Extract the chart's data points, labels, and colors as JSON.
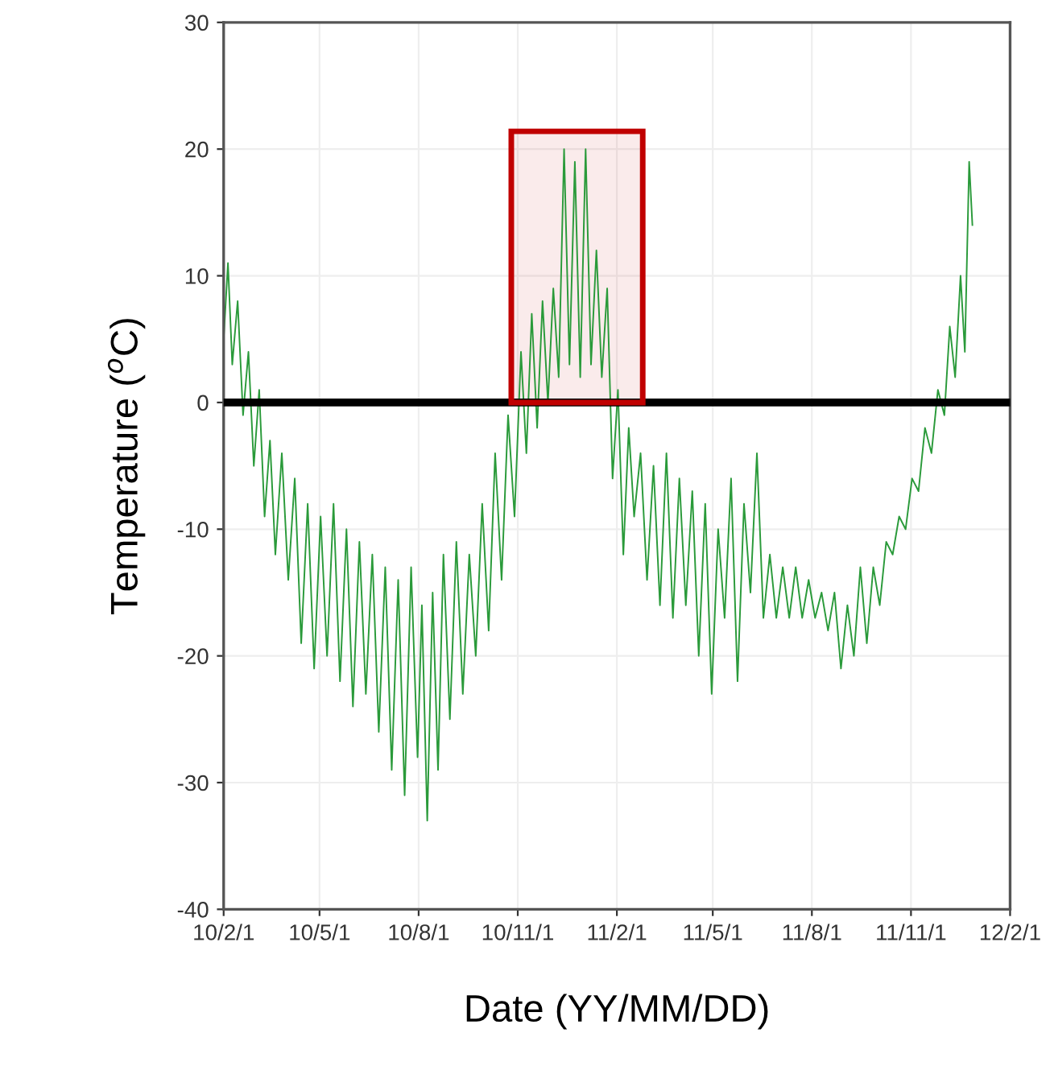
{
  "chart_data": {
    "type": "line",
    "xlabel": "Date (YY/MM/DD)",
    "ylabel": "Temperature ($^{o}$C)",
    "xlim": [
      "2010-02-01",
      "2012-02-01"
    ],
    "xticks": [
      {
        "value": "2010-02-01",
        "label": "10/2/1"
      },
      {
        "value": "2010-05-01",
        "label": "10/5/1"
      },
      {
        "value": "2010-08-01",
        "label": "10/8/1"
      },
      {
        "value": "2010-11-01",
        "label": "10/11/1"
      },
      {
        "value": "2011-02-01",
        "label": "11/2/1"
      },
      {
        "value": "2011-05-01",
        "label": "11/5/1"
      },
      {
        "value": "2011-08-01",
        "label": "11/8/1"
      },
      {
        "value": "2011-11-01",
        "label": "11/11/1"
      },
      {
        "value": "2012-02-01",
        "label": "12/2/1"
      }
    ],
    "ylim": [
      -40,
      30
    ],
    "yticks": [
      -40,
      -30,
      -20,
      -10,
      0,
      10,
      20,
      30
    ],
    "grid": true,
    "ref_lines": [
      {
        "axis": "y",
        "value": 0,
        "color": "#000000"
      }
    ],
    "bands": [
      {
        "axis": "x",
        "from": "2010-10-26",
        "to": "2011-02-25",
        "color": "#c00000"
      }
    ],
    "series": [
      {
        "color": "#2a9a3a",
        "x": [
          "2010-02-01",
          "2010-02-05",
          "2010-02-09",
          "2010-02-14",
          "2010-02-19",
          "2010-02-24",
          "2010-03-01",
          "2010-03-06",
          "2010-03-11",
          "2010-03-16",
          "2010-03-21",
          "2010-03-27",
          "2010-04-02",
          "2010-04-08",
          "2010-04-14",
          "2010-04-20",
          "2010-04-26",
          "2010-05-02",
          "2010-05-08",
          "2010-05-14",
          "2010-05-20",
          "2010-05-26",
          "2010-06-01",
          "2010-06-07",
          "2010-06-13",
          "2010-06-19",
          "2010-06-25",
          "2010-07-01",
          "2010-07-07",
          "2010-07-13",
          "2010-07-19",
          "2010-07-25",
          "2010-07-31",
          "2010-08-04",
          "2010-08-09",
          "2010-08-14",
          "2010-08-19",
          "2010-08-24",
          "2010-08-30",
          "2010-09-05",
          "2010-09-11",
          "2010-09-17",
          "2010-09-23",
          "2010-09-29",
          "2010-10-05",
          "2010-10-11",
          "2010-10-17",
          "2010-10-23",
          "2010-10-29",
          "2010-11-04",
          "2010-11-09",
          "2010-11-14",
          "2010-11-19",
          "2010-11-24",
          "2010-11-29",
          "2010-12-04",
          "2010-12-09",
          "2010-12-14",
          "2010-12-19",
          "2010-12-24",
          "2010-12-29",
          "2011-01-03",
          "2011-01-08",
          "2011-01-13",
          "2011-01-18",
          "2011-01-23",
          "2011-01-28",
          "2011-02-02",
          "2011-02-07",
          "2011-02-12",
          "2011-02-17",
          "2011-02-23",
          "2011-03-01",
          "2011-03-07",
          "2011-03-13",
          "2011-03-19",
          "2011-03-25",
          "2011-03-31",
          "2011-04-06",
          "2011-04-12",
          "2011-04-18",
          "2011-04-24",
          "2011-04-30",
          "2011-05-06",
          "2011-05-12",
          "2011-05-18",
          "2011-05-24",
          "2011-05-30",
          "2011-06-05",
          "2011-06-11",
          "2011-06-17",
          "2011-06-23",
          "2011-06-29",
          "2011-07-05",
          "2011-07-11",
          "2011-07-17",
          "2011-07-23",
          "2011-07-29",
          "2011-08-04",
          "2011-08-10",
          "2011-08-16",
          "2011-08-22",
          "2011-08-28",
          "2011-09-03",
          "2011-09-09",
          "2011-09-15",
          "2011-09-21",
          "2011-09-27",
          "2011-10-03",
          "2011-10-09",
          "2011-10-15",
          "2011-10-21",
          "2011-10-27",
          "2011-11-02",
          "2011-11-08",
          "2011-11-14",
          "2011-11-20",
          "2011-11-26",
          "2011-12-02",
          "2011-12-07",
          "2011-12-12",
          "2011-12-17",
          "2011-12-21",
          "2011-12-25",
          "2011-12-28"
        ],
        "values": [
          5,
          11,
          3,
          8,
          -1,
          4,
          -5,
          1,
          -9,
          -3,
          -12,
          -4,
          -14,
          -6,
          -19,
          -8,
          -21,
          -9,
          -20,
          -8,
          -22,
          -10,
          -24,
          -11,
          -23,
          -12,
          -26,
          -13,
          -29,
          -14,
          -31,
          -13,
          -28,
          -16,
          -33,
          -15,
          -29,
          -12,
          -25,
          -11,
          -23,
          -12,
          -20,
          -8,
          -18,
          -4,
          -14,
          -1,
          -9,
          4,
          -4,
          7,
          -2,
          8,
          0,
          9,
          2,
          20,
          3,
          19,
          2,
          20,
          3,
          12,
          2,
          9,
          -6,
          1,
          -12,
          -2,
          -9,
          -4,
          -14,
          -5,
          -16,
          -4,
          -17,
          -6,
          -16,
          -7,
          -20,
          -8,
          -23,
          -10,
          -17,
          -6,
          -22,
          -8,
          -15,
          -4,
          -17,
          -12,
          -17,
          -13,
          -17,
          -13,
          -17,
          -14,
          -17,
          -15,
          -18,
          -15,
          -21,
          -16,
          -20,
          -13,
          -19,
          -13,
          -16,
          -11,
          -12,
          -9,
          -10,
          -6,
          -7,
          -2,
          -4,
          1,
          -1,
          6,
          2,
          10,
          4,
          19,
          14
        ]
      }
    ]
  }
}
